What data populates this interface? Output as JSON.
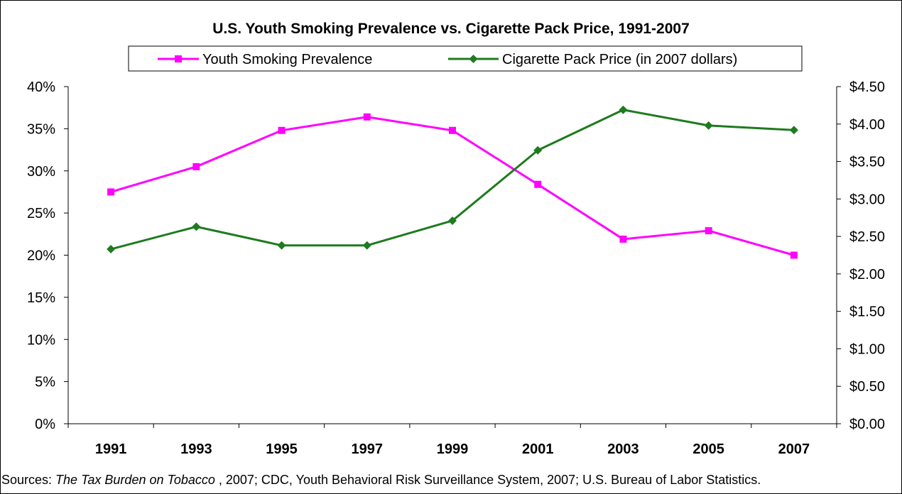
{
  "chart_data": {
    "type": "line",
    "title": "U.S. Youth Smoking Prevalence vs. Cigarette Pack Price, 1991-2007",
    "categories": [
      "1991",
      "1993",
      "1995",
      "1997",
      "1999",
      "2001",
      "2003",
      "2005",
      "2007"
    ],
    "series": [
      {
        "name": "Youth Smoking Prevalence",
        "axis": "left",
        "color": "#FF00FF",
        "marker": "square",
        "values": [
          27.5,
          30.5,
          34.8,
          36.4,
          34.8,
          28.4,
          21.9,
          22.9,
          20.0
        ]
      },
      {
        "name": "Cigarette Pack Price (in 2007 dollars)",
        "axis": "right",
        "color": "#1E7B1E",
        "marker": "diamond",
        "values": [
          2.33,
          2.63,
          2.38,
          2.38,
          2.71,
          3.65,
          4.19,
          3.98,
          3.92
        ]
      }
    ],
    "y_left": {
      "min": 0,
      "max": 40,
      "step": 5,
      "tick_labels": [
        "0%",
        "5%",
        "10%",
        "15%",
        "20%",
        "25%",
        "30%",
        "35%",
        "40%"
      ]
    },
    "y_right": {
      "min": 0,
      "max": 4.5,
      "step": 0.5,
      "tick_labels": [
        "$0.00",
        "$0.50",
        "$1.00",
        "$1.50",
        "$2.00",
        "$2.50",
        "$3.00",
        "$3.50",
        "$4.00",
        "$4.50"
      ]
    },
    "grid": false,
    "legend_position": "top"
  },
  "sources": {
    "prefix": "Sources: ",
    "italic": "The Tax Burden on Tobacco",
    "rest": " , 2007; CDC, Youth Behavioral Risk Surveillance System, 2007; U.S. Bureau of Labor Statistics."
  }
}
